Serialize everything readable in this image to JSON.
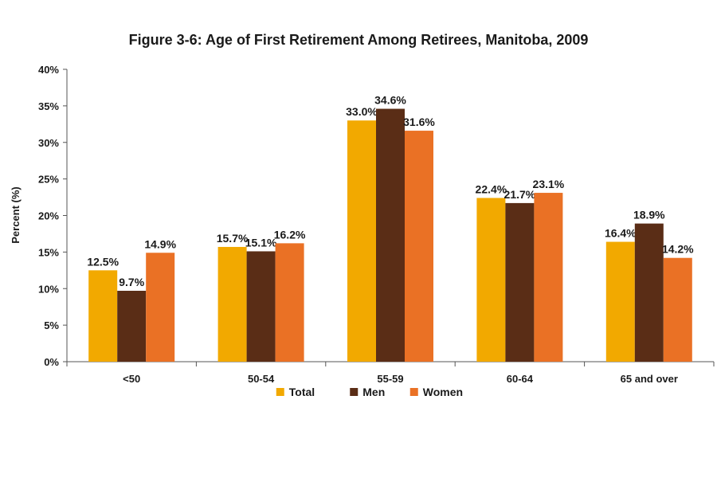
{
  "chart_data": {
    "type": "bar",
    "title": "Figure 3-6: Age of First Retirement Among Retirees, Manitoba, 2009",
    "xlabel": "",
    "ylabel": "Percent (%)",
    "categories": [
      "<50",
      "50-54",
      "55-59",
      "60-64",
      "65 and over"
    ],
    "series": [
      {
        "name": "Total",
        "color": "#f2a900",
        "values": [
          12.5,
          15.7,
          33.0,
          22.4,
          16.4
        ],
        "labels": [
          "12.5%",
          "15.7%",
          "33.0%",
          "22.4%",
          "16.4%"
        ]
      },
      {
        "name": "Men",
        "color": "#5a2d16",
        "values": [
          9.7,
          15.1,
          34.6,
          21.7,
          18.9
        ],
        "labels": [
          "9.7%",
          "15.1%",
          "34.6%",
          "21.7%",
          "18.9%"
        ]
      },
      {
        "name": "Women",
        "color": "#ea7125",
        "values": [
          14.9,
          16.2,
          31.6,
          23.1,
          14.2
        ],
        "labels": [
          "14.9%",
          "16.2%",
          "31.6%",
          "23.1%",
          "14.2%"
        ]
      }
    ],
    "ylim": [
      0,
      40
    ],
    "yticks": [
      0,
      5,
      10,
      15,
      20,
      25,
      30,
      35,
      40
    ],
    "ytick_labels": [
      "0%",
      "5%",
      "10%",
      "15%",
      "20%",
      "25%",
      "30%",
      "35%",
      "40%"
    ],
    "grid": false,
    "legend_position": "bottom"
  }
}
